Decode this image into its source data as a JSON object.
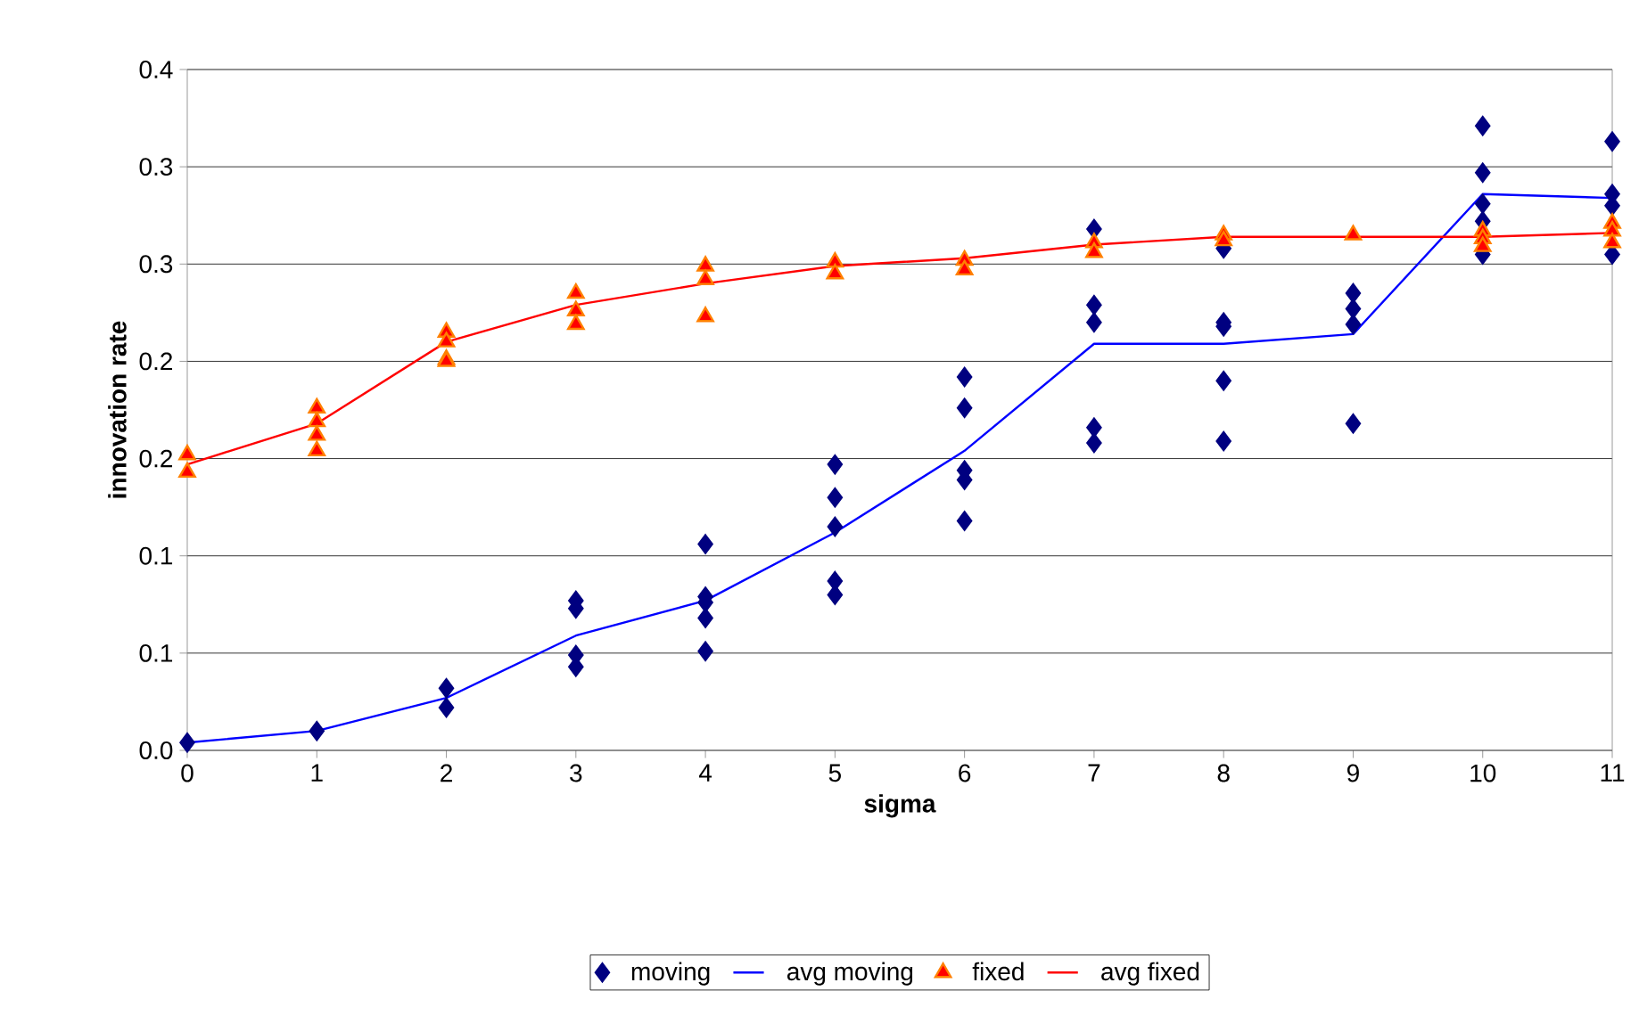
{
  "chart_data": {
    "type": "scatter",
    "xlabel": "sigma",
    "ylabel": "innovation rate",
    "xlim": [
      0,
      11
    ],
    "ylim": [
      0,
      0.35
    ],
    "xticks": [
      0,
      1,
      2,
      3,
      4,
      5,
      6,
      7,
      8,
      9,
      10,
      11
    ],
    "yticks": [
      {
        "value": 0,
        "label": "0.0"
      },
      {
        "value": 0.05,
        "label": "0.1"
      },
      {
        "value": 0.1,
        "label": "0.1"
      },
      {
        "value": 0.15,
        "label": "0.2"
      },
      {
        "value": 0.2,
        "label": "0.2"
      },
      {
        "value": 0.25,
        "label": "0.3"
      },
      {
        "value": 0.3,
        "label": "0.3"
      },
      {
        "value": 0.35,
        "label": "0.4"
      }
    ],
    "grid": "y",
    "legend": "bottom",
    "series": [
      {
        "name": "moving",
        "marker": "diamond",
        "color": "#000080",
        "x": [
          0,
          1,
          2,
          2,
          3,
          3,
          3,
          3,
          4,
          4,
          4,
          4,
          4,
          5,
          5,
          5,
          5,
          5,
          6,
          6,
          6,
          6,
          6,
          7,
          7,
          7,
          7,
          7,
          8,
          8,
          8,
          8,
          8,
          9,
          9,
          9,
          9,
          10,
          10,
          10,
          10,
          10,
          11,
          11,
          11,
          11
        ],
        "values": [
          0.004,
          0.01,
          0.032,
          0.022,
          0.077,
          0.073,
          0.049,
          0.043,
          0.106,
          0.079,
          0.076,
          0.068,
          0.051,
          0.147,
          0.13,
          0.115,
          0.087,
          0.08,
          0.192,
          0.176,
          0.144,
          0.139,
          0.118,
          0.268,
          0.229,
          0.22,
          0.166,
          0.158,
          0.258,
          0.22,
          0.218,
          0.19,
          0.159,
          0.235,
          0.227,
          0.219,
          0.168,
          0.321,
          0.297,
          0.281,
          0.272,
          0.255,
          0.313,
          0.286,
          0.28,
          0.255
        ]
      },
      {
        "name": "avg moving",
        "type": "line",
        "marker": "none",
        "color": "#0000ff",
        "x": [
          0,
          1,
          2,
          3,
          4,
          5,
          6,
          7,
          8,
          9,
          10,
          11
        ],
        "values": [
          0.004,
          0.01,
          0.027,
          0.059,
          0.077,
          0.112,
          0.154,
          0.209,
          0.209,
          0.214,
          0.286,
          0.284
        ]
      },
      {
        "name": "fixed",
        "marker": "triangle",
        "color": "#ff0000",
        "x": [
          0,
          0,
          1,
          1,
          1,
          1,
          2,
          2,
          2,
          2,
          3,
          3,
          3,
          4,
          4,
          4,
          5,
          5,
          6,
          6,
          7,
          7,
          8,
          8,
          9,
          10,
          10,
          10,
          11,
          11,
          11
        ],
        "values": [
          0.152,
          0.143,
          0.176,
          0.169,
          0.162,
          0.154,
          0.215,
          0.21,
          0.201,
          0.2,
          0.235,
          0.226,
          0.219,
          0.249,
          0.242,
          0.223,
          0.251,
          0.245,
          0.252,
          0.247,
          0.261,
          0.256,
          0.265,
          0.262,
          0.265,
          0.267,
          0.263,
          0.259,
          0.271,
          0.267,
          0.261
        ]
      },
      {
        "name": "avg fixed",
        "type": "line",
        "marker": "none",
        "color": "#ff0000",
        "x": [
          0,
          1,
          2,
          3,
          4,
          5,
          6,
          7,
          8,
          9,
          10,
          11
        ],
        "values": [
          0.147,
          0.168,
          0.21,
          0.229,
          0.24,
          0.249,
          0.253,
          0.26,
          0.264,
          0.264,
          0.264,
          0.266
        ]
      }
    ]
  }
}
